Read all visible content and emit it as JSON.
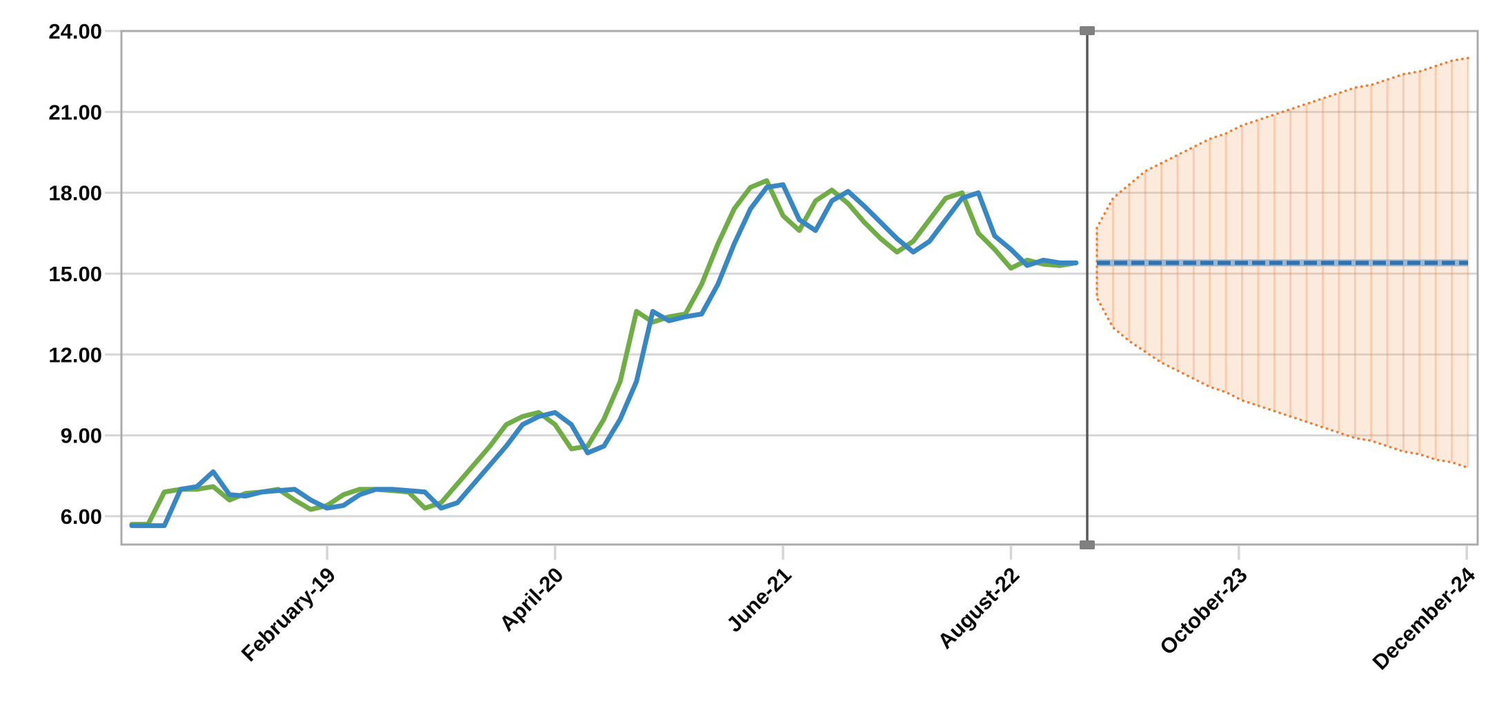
{
  "chart_data": {
    "type": "line",
    "title": "",
    "grid": "horizontal",
    "legend": "none",
    "colors": {
      "actual_line": "#70AD47",
      "fitted_line": "#3787C3",
      "forecast_center_dash": "#2E73B0",
      "forecast_center_band": "#9FB6D0",
      "cone_fill": "#F4B183",
      "cone_hatch": "#ED7D31",
      "cone_border": "#ED7D31",
      "gridline": "#D6D6D6",
      "plot_border": "#ABABAB",
      "divider": "#595959",
      "divider_handle": "#808080",
      "axis_text": "#0a0a0a"
    },
    "y_axis": {
      "tick_labels": [
        "24.00",
        "21.00",
        "18.00",
        "15.00",
        "12.00",
        "9.00",
        "6.00"
      ],
      "tick_values": [
        24,
        21,
        18,
        15,
        12,
        9,
        6
      ],
      "top_value": 24,
      "bottom_value": 4.95
    },
    "x_axis": {
      "tick_labels": [
        "February-19",
        "April-20",
        "June-21",
        "August-22",
        "October-23",
        "December-24"
      ],
      "tick_month_offsets": [
        12,
        26,
        40,
        54,
        68,
        82
      ],
      "label_rotation_deg": 45
    },
    "history_points": 59,
    "forecast_points": 24,
    "series": [
      {
        "name": "actual-history",
        "color_key": "actual_line",
        "values": [
          5.7,
          5.7,
          6.9,
          7.0,
          7.0,
          7.1,
          6.6,
          6.85,
          6.9,
          7.0,
          6.6,
          6.25,
          6.4,
          6.8,
          7.0,
          7.0,
          6.95,
          6.9,
          6.3,
          6.5,
          7.2,
          7.9,
          8.6,
          9.4,
          9.7,
          9.85,
          9.4,
          8.5,
          8.6,
          9.6,
          11.0,
          13.6,
          13.2,
          13.4,
          13.5,
          14.6,
          16.1,
          17.4,
          18.2,
          18.45,
          17.15,
          16.6,
          17.7,
          18.1,
          17.6,
          16.9,
          16.3,
          15.8,
          16.2,
          17.0,
          17.8,
          18.0,
          16.5,
          15.9,
          15.2,
          15.5,
          15.35,
          15.3,
          15.4
        ]
      },
      {
        "name": "fitted-history",
        "color_key": "fitted_line",
        "values": [
          5.65,
          5.65,
          5.65,
          7.0,
          7.1,
          7.65,
          6.8,
          6.75,
          6.9,
          6.95,
          7.0,
          6.6,
          6.3,
          6.4,
          6.8,
          7.0,
          7.0,
          6.95,
          6.9,
          6.3,
          6.5,
          7.2,
          7.9,
          8.6,
          9.4,
          9.7,
          9.85,
          9.4,
          8.35,
          8.6,
          9.6,
          11.0,
          13.6,
          13.25,
          13.4,
          13.5,
          14.6,
          16.1,
          17.4,
          18.2,
          18.3,
          17.0,
          16.6,
          17.7,
          18.05,
          17.5,
          16.9,
          16.3,
          15.8,
          16.2,
          17.0,
          17.8,
          18.0,
          16.4,
          15.9,
          15.3,
          15.5,
          15.4,
          15.4
        ]
      }
    ],
    "forecast": {
      "center_value": 15.4,
      "center": [
        15.4,
        15.4,
        15.4,
        15.4,
        15.4,
        15.4,
        15.4,
        15.4,
        15.4,
        15.4,
        15.4,
        15.4,
        15.4,
        15.4,
        15.4,
        15.4,
        15.4,
        15.4,
        15.4,
        15.4,
        15.4,
        15.4,
        15.4,
        15.4
      ],
      "upper": [
        16.7,
        17.8,
        18.3,
        18.8,
        19.1,
        19.4,
        19.7,
        20.0,
        20.2,
        20.5,
        20.7,
        20.9,
        21.1,
        21.3,
        21.5,
        21.7,
        21.9,
        22.0,
        22.2,
        22.4,
        22.5,
        22.7,
        22.9,
        23.0
      ],
      "lower": [
        14.1,
        13.0,
        12.5,
        12.1,
        11.7,
        11.4,
        11.1,
        10.8,
        10.6,
        10.3,
        10.1,
        9.9,
        9.7,
        9.5,
        9.3,
        9.1,
        8.9,
        8.8,
        8.6,
        8.4,
        8.3,
        8.1,
        8.0,
        7.8
      ]
    }
  }
}
